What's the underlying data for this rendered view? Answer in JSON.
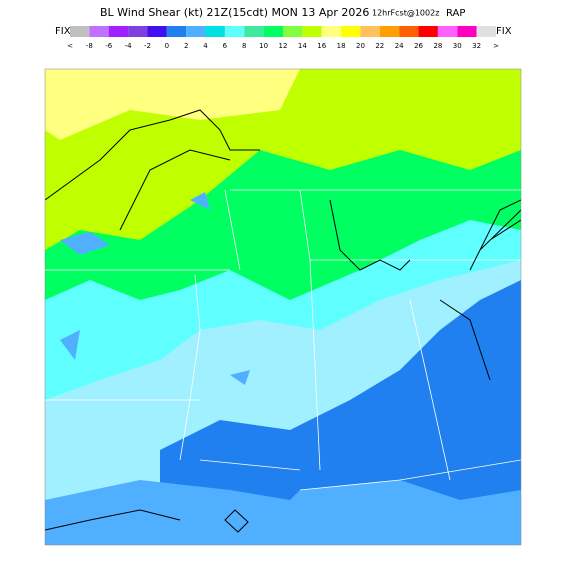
{
  "header": {
    "title": "BL Wind Shear (kt) 21Z(15cdt) MON 13 Apr 2026",
    "run": "12hrFcst@1002z",
    "model": "RAP",
    "fix_left": "FIX",
    "fix_right": "FIX"
  },
  "legend": {
    "labels": [
      "<",
      "-8",
      "-6",
      "-4",
      "-2",
      "0",
      "2",
      "4",
      "6",
      "8",
      "10",
      "12",
      "14",
      "16",
      "18",
      "20",
      "22",
      "24",
      "26",
      "28",
      "30",
      "32",
      ">"
    ],
    "colors": [
      "#c0c0c0",
      "#c070ff",
      "#a020ff",
      "#8040e0",
      "#4010f0",
      "#2080f0",
      "#50b0ff",
      "#00e0e0",
      "#60ffff",
      "#40e8a0",
      "#00ff60",
      "#80ff40",
      "#c0ff00",
      "#ffff80",
      "#ffff00",
      "#ffc060",
      "#ffa000",
      "#ff6000",
      "#ff0000",
      "#ff60ff",
      "#ff00c0",
      "#e0e0e0"
    ]
  }
}
